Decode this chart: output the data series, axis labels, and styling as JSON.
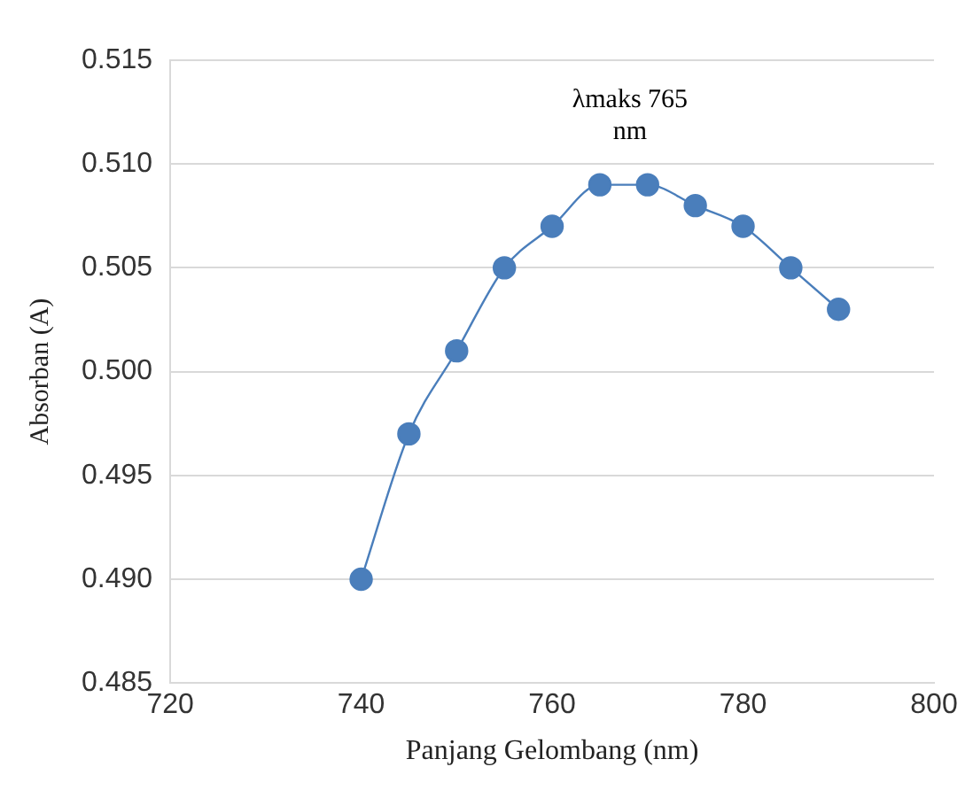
{
  "chart_data": {
    "type": "line",
    "xlabel": "Panjang Gelombang (nm)",
    "ylabel": "Absorban (A)",
    "x": [
      740,
      745,
      750,
      755,
      760,
      765,
      770,
      775,
      780,
      785,
      790
    ],
    "series": [
      {
        "color": "#4a7ebb",
        "values": [
          0.49,
          0.497,
          0.501,
          0.505,
          0.507,
          0.509,
          0.509,
          0.508,
          0.507,
          0.505,
          0.503
        ]
      }
    ],
    "xlim": [
      720,
      800
    ],
    "xticks": [
      720,
      740,
      760,
      780,
      800
    ],
    "ylim": [
      0.485,
      0.515
    ],
    "yticks": [
      {
        "value": 0.485,
        "label": "0.485"
      },
      {
        "value": 0.49,
        "label": "0.490"
      },
      {
        "value": 0.495,
        "label": "0.495"
      },
      {
        "value": 0.5,
        "label": "0.500"
      },
      {
        "value": 0.505,
        "label": "0.505"
      },
      {
        "value": 0.51,
        "label": "0.510"
      },
      {
        "value": 0.515,
        "label": "0.515"
      }
    ],
    "grid": "y",
    "marker": "circle",
    "line_style": "solid",
    "legend": false,
    "annotations": [
      {
        "text": "λmaks 765 nm",
        "x": 765,
        "y": 0.509
      }
    ]
  }
}
